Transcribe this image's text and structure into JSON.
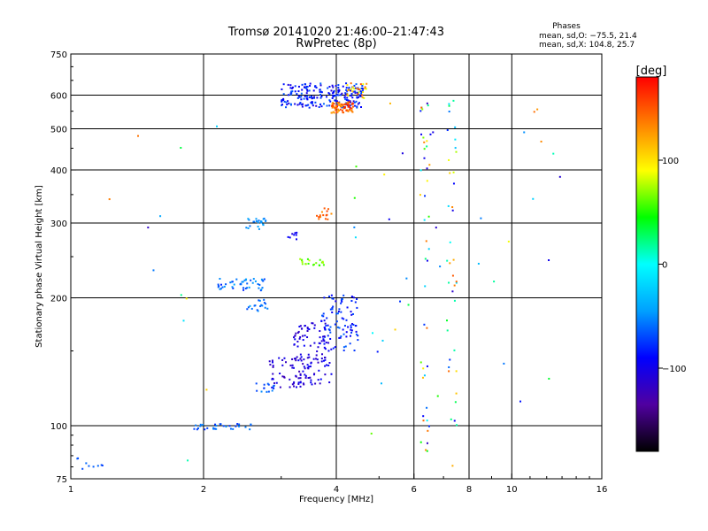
{
  "chart_data": {
    "type": "scatter",
    "title": "Tromsø 20141020 21:46:00–21:47:43",
    "subtitle": "RwPretec (8p)",
    "xlabel": "Frequency [MHz]",
    "ylabel": "Stationary phase Virtual Height [km]",
    "x_scale": "log",
    "y_scale": "log",
    "xlim": [
      1,
      16
    ],
    "ylim": [
      75,
      750
    ],
    "x_ticks": [
      1,
      2,
      4,
      6,
      8,
      10,
      16
    ],
    "x_ticklabels": [
      "1",
      "2",
      "4",
      "6",
      "8",
      "10",
      "16"
    ],
    "y_ticks": [
      75,
      100,
      200,
      300,
      400,
      500,
      600,
      750
    ],
    "y_ticklabels": [
      "75",
      "100",
      "200",
      "300",
      "400",
      "500",
      "600",
      "750"
    ],
    "grid": true,
    "annotation_title": "Phases",
    "annotation_lines": [
      "mean, sd,O: −75.5, 21.4",
      "mean, sd,X: 104.8, 25.7"
    ],
    "colorbar": {
      "label": "[deg]",
      "range": [
        -180,
        180
      ],
      "ticks": [
        100,
        0,
        -100
      ],
      "ticklabels": [
        "100",
        "0",
        "−100"
      ],
      "colors": [
        "#000000",
        "#5000a0",
        "#0000ff",
        "#00a0ff",
        "#00ffff",
        "#00ff00",
        "#ffff00",
        "#ff8000",
        "#ff0000"
      ]
    },
    "clusters": [
      {
        "f": [
          3.0,
          4.6
        ],
        "h": [
          560,
          640
        ],
        "n": 220,
        "phase": [
          -110,
          -60
        ]
      },
      {
        "f": [
          3.9,
          4.4
        ],
        "h": [
          545,
          580
        ],
        "n": 70,
        "phase": [
          120,
          170
        ]
      },
      {
        "f": [
          4.2,
          4.7
        ],
        "h": [
          590,
          640
        ],
        "n": 25,
        "phase": [
          80,
          160
        ]
      },
      {
        "f": [
          3.7,
          4.5
        ],
        "h": [
          150,
          205
        ],
        "n": 90,
        "phase": [
          -100,
          -60
        ]
      },
      {
        "f": [
          3.2,
          3.9
        ],
        "h": [
          125,
          175
        ],
        "n": 110,
        "phase": [
          -120,
          -90
        ]
      },
      {
        "f": [
          2.8,
          3.4
        ],
        "h": [
          123,
          145
        ],
        "n": 50,
        "phase": [
          -125,
          -95
        ]
      },
      {
        "f": [
          2.6,
          2.9
        ],
        "h": [
          120,
          127
        ],
        "n": 15,
        "phase": [
          -80,
          -50
        ]
      },
      {
        "f": [
          2.15,
          2.8
        ],
        "h": [
          208,
          222
        ],
        "n": 45,
        "phase": [
          -80,
          -40
        ]
      },
      {
        "f": [
          2.5,
          2.8
        ],
        "h": [
          186,
          198
        ],
        "n": 18,
        "phase": [
          -70,
          -40
        ]
      },
      {
        "f": [
          2.5,
          2.8
        ],
        "h": [
          290,
          310
        ],
        "n": 22,
        "phase": [
          -60,
          -40
        ]
      },
      {
        "f": [
          3.3,
          3.8
        ],
        "h": [
          238,
          247
        ],
        "n": 20,
        "phase": [
          50,
          80
        ]
      },
      {
        "f": [
          3.6,
          3.9
        ],
        "h": [
          305,
          325
        ],
        "n": 15,
        "phase": [
          130,
          160
        ]
      },
      {
        "f": [
          3.1,
          3.3
        ],
        "h": [
          270,
          285
        ],
        "n": 8,
        "phase": [
          -110,
          -90
        ]
      },
      {
        "f": [
          1.9,
          2.6
        ],
        "h": [
          98,
          101
        ],
        "n": 30,
        "phase": [
          -80,
          -50
        ]
      },
      {
        "f": [
          1.0,
          1.2
        ],
        "h": [
          79,
          84
        ],
        "n": 10,
        "phase": [
          -80,
          -50
        ]
      },
      {
        "f": [
          6.2,
          6.5
        ],
        "h": [
          80,
          600
        ],
        "n": 40,
        "phase": [
          -120,
          150
        ]
      },
      {
        "f": [
          7.1,
          7.5
        ],
        "h": [
          80,
          600
        ],
        "n": 40,
        "phase": [
          -120,
          150
        ]
      },
      {
        "f": [
          4.2,
          7.0
        ],
        "h": [
          80,
          600
        ],
        "n": 25,
        "phase": [
          -120,
          150
        ]
      },
      {
        "f": [
          8.0,
          13.0
        ],
        "h": [
          100,
          600
        ],
        "n": 15,
        "phase": [
          -120,
          150
        ]
      },
      {
        "f": [
          1.2,
          2.2
        ],
        "h": [
          80,
          610
        ],
        "n": 12,
        "phase": [
          -120,
          150
        ]
      }
    ]
  }
}
